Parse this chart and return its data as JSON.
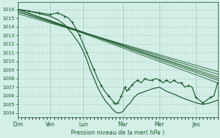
{
  "xlabel": "Pression niveau de la mer( hPa )",
  "background_color": "#d4eee8",
  "grid_color_major": "#b8d8d0",
  "grid_color_minor": "#c8e4de",
  "line_color": "#1a5c2a",
  "ylim": [
    1003.5,
    1016.8
  ],
  "yticks": [
    1004,
    1005,
    1006,
    1007,
    1008,
    1009,
    1010,
    1011,
    1012,
    1013,
    1014,
    1015,
    1016
  ],
  "xlim": [
    0,
    5.5
  ],
  "x_day_labels": [
    "Dim",
    "Ven",
    "Lun",
    "Mar",
    "Mer",
    "Jeu"
  ],
  "x_day_positions": [
    0.0,
    0.9,
    1.8,
    2.9,
    3.9,
    4.9
  ],
  "vline_positions": [
    0.0,
    0.9,
    1.8,
    2.9,
    3.9,
    4.9
  ],
  "lines_gradual": [
    {
      "x": [
        0,
        5.5
      ],
      "y": [
        1016.0,
        1007.8
      ]
    },
    {
      "x": [
        0,
        5.5
      ],
      "y": [
        1016.0,
        1007.5
      ]
    },
    {
      "x": [
        0,
        5.5
      ],
      "y": [
        1016.0,
        1008.0
      ]
    },
    {
      "x": [
        0,
        5.5
      ],
      "y": [
        1015.8,
        1008.2
      ]
    },
    {
      "x": [
        0,
        5.5
      ],
      "y": [
        1015.7,
        1008.5
      ]
    },
    {
      "x": [
        0,
        5.5
      ],
      "y": [
        1015.5,
        1008.8
      ]
    }
  ],
  "line_detail_x": [
    0,
    0.15,
    0.3,
    0.45,
    0.6,
    0.75,
    0.9,
    1.0,
    1.1,
    1.2,
    1.3,
    1.4,
    1.5,
    1.6,
    1.7,
    1.8,
    1.9,
    2.0,
    2.1,
    2.2,
    2.3,
    2.4,
    2.5,
    2.6,
    2.65,
    2.7,
    2.75,
    2.8,
    2.85,
    2.9,
    2.95,
    3.0,
    3.05,
    3.1,
    3.15,
    3.2,
    3.3,
    3.4,
    3.5,
    3.6,
    3.7,
    3.8,
    3.9,
    4.0,
    4.1,
    4.2,
    4.3,
    4.4,
    4.5,
    4.6,
    4.7,
    4.8,
    4.9,
    5.0,
    5.1,
    5.2,
    5.3,
    5.4,
    5.5
  ],
  "line_detail_y": [
    1016.0,
    1015.9,
    1015.8,
    1015.7,
    1015.6,
    1015.5,
    1015.4,
    1015.5,
    1015.6,
    1015.4,
    1015.2,
    1015.0,
    1014.5,
    1013.8,
    1013.0,
    1012.0,
    1011.0,
    1010.0,
    1009.0,
    1008.0,
    1007.2,
    1006.5,
    1006.0,
    1005.5,
    1005.2,
    1005.0,
    1005.2,
    1005.5,
    1006.0,
    1006.5,
    1007.0,
    1006.5,
    1006.8,
    1007.0,
    1007.3,
    1007.5,
    1007.8,
    1007.5,
    1008.0,
    1007.8,
    1007.8,
    1008.0,
    1007.8,
    1007.5,
    1007.8,
    1007.5,
    1007.8,
    1007.5,
    1007.5,
    1007.0,
    1007.2,
    1007.0,
    1005.8,
    1005.5,
    1005.2,
    1005.5,
    1005.8,
    1006.0,
    1007.5
  ],
  "line_sharp_x": [
    0,
    0.3,
    0.6,
    0.9,
    1.1,
    1.3,
    1.5,
    1.7,
    1.8,
    1.9,
    2.0,
    2.1,
    2.2,
    2.3,
    2.4,
    2.5,
    2.55,
    2.6,
    2.65,
    2.7,
    2.8,
    2.9,
    3.0,
    3.1,
    3.2,
    3.3,
    3.5,
    3.7,
    3.9,
    4.1,
    4.3,
    4.5,
    4.7,
    4.9,
    5.1,
    5.3,
    5.5
  ],
  "line_sharp_y": [
    1016.0,
    1015.8,
    1015.5,
    1015.2,
    1014.8,
    1014.2,
    1013.2,
    1012.0,
    1011.2,
    1010.2,
    1009.0,
    1008.0,
    1007.0,
    1006.2,
    1005.5,
    1005.0,
    1004.8,
    1004.5,
    1004.3,
    1004.1,
    1004.0,
    1004.2,
    1004.8,
    1005.2,
    1005.8,
    1006.2,
    1006.5,
    1006.8,
    1007.0,
    1006.5,
    1006.2,
    1005.8,
    1005.5,
    1005.2,
    1005.0,
    1005.2,
    1005.5
  ]
}
